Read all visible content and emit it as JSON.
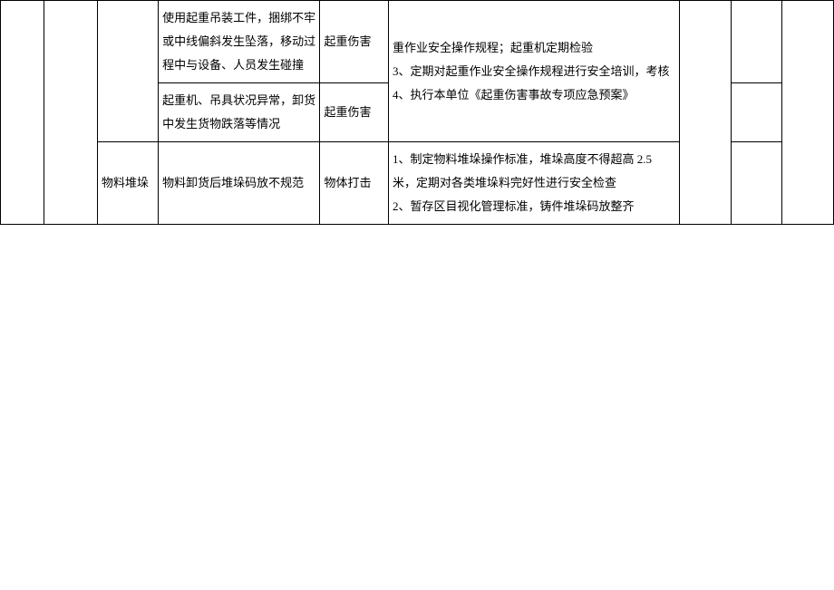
{
  "table": {
    "rows": [
      {
        "col_c": "",
        "col_d": "使用起重吊装工件，捆绑不牢或中线偏斜发生坠落，移动过程中与设备、人员发生碰撞",
        "col_e": "起重伤害",
        "col_f": "重作业安全操作规程；起重机定期检验\n3、定期对起重作业安全操作规程进行安全培训，考核\n4、执行本单位《起重伤害事故专项应急预案》"
      },
      {
        "col_d": "起重机、吊具状况异常，卸货中发生货物跌落等情况",
        "col_e": "起重伤害"
      },
      {
        "col_c": "物料堆垛",
        "col_d": "物料卸货后堆垛码放不规范",
        "col_e": "物体打击",
        "col_f": "1、制定物料堆垛操作标准，堆垛高度不得超高 2.5 米，定期对各类堆垛料完好性进行安全检查\n2、暂存区目视化管理标准，铸件堆垛码放整齐"
      }
    ]
  }
}
